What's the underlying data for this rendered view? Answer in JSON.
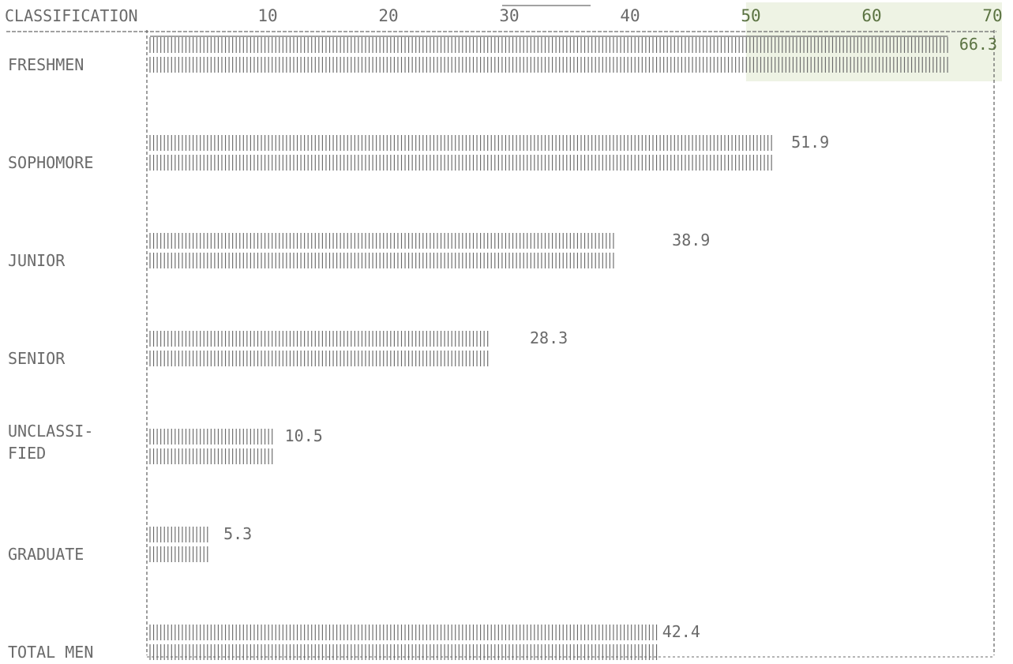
{
  "chart_data": {
    "type": "bar",
    "orientation": "horizontal",
    "header_label": "CLASSIFICATION",
    "categories": [
      "FRESHMEN",
      "SOPHOMORE",
      "JUNIOR",
      "SENIOR",
      "UNCLASSI-\nFIED",
      "GRADUATE",
      "TOTAL MEN"
    ],
    "values": [
      66.3,
      51.9,
      38.9,
      28.3,
      10.5,
      5.3,
      42.4
    ],
    "value_labels": [
      "66.3",
      "51.9",
      "38.9",
      "28.3",
      "10.5",
      "5.3",
      "42.4"
    ],
    "xticks": [
      10,
      20,
      30,
      40,
      50,
      60,
      70
    ],
    "xlim": [
      0,
      70
    ],
    "grid": false,
    "legend": "none",
    "colors": {
      "ink": "#6a6a6a",
      "highlight": "#eef3e4",
      "highlight_text": "#5b7342"
    }
  }
}
